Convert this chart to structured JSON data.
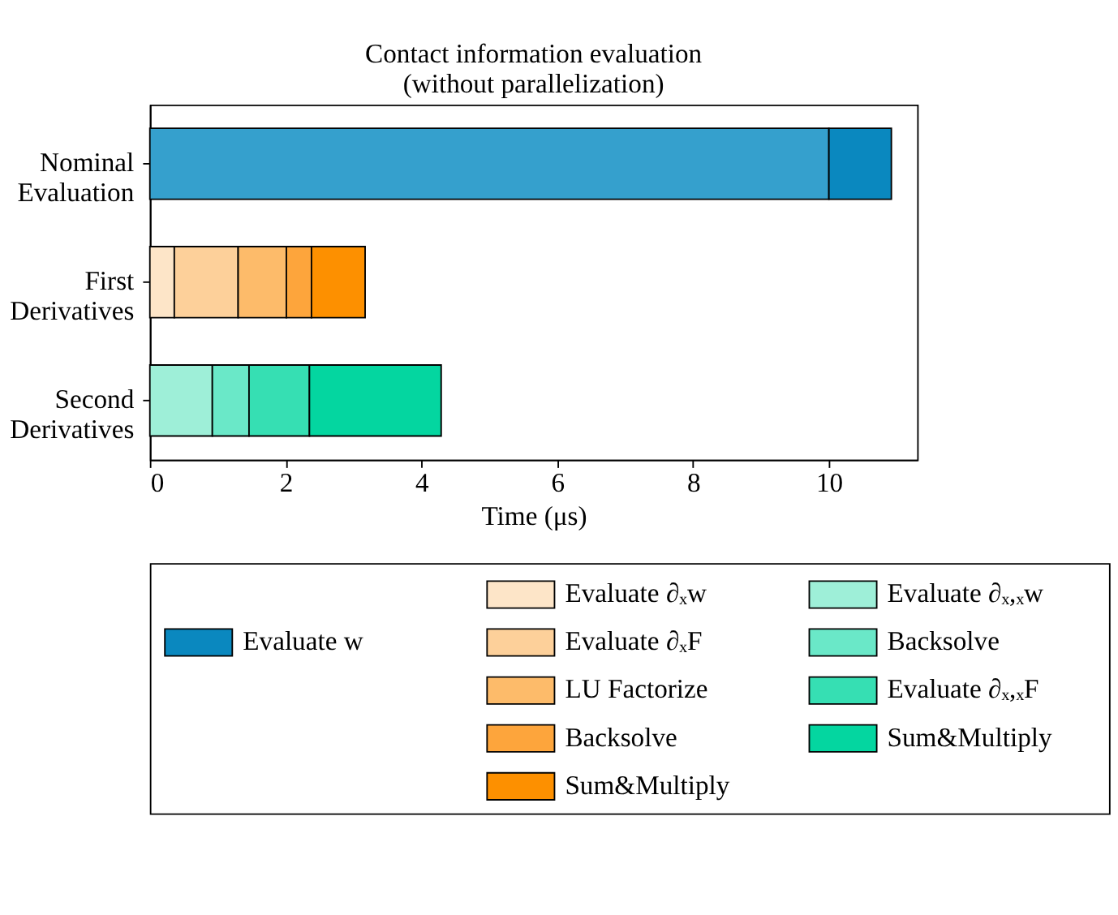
{
  "chart_data": {
    "type": "bar",
    "orientation": "horizontal",
    "stacked": true,
    "title": "Contact information evaluation\n(without parallelization)",
    "xlabel": "Time (μs)",
    "categories": [
      "Nominal\nEvaluation",
      "First\nDerivatives",
      "Second\nDerivatives"
    ],
    "xlim": [
      0,
      11.3
    ],
    "xticks": [
      0,
      2,
      4,
      6,
      8,
      10
    ],
    "grid": false,
    "legend": "bottom",
    "series": [
      {
        "color": "#35a0cd",
        "values": [
          10.0,
          null,
          null
        ]
      },
      {
        "name": "Evaluate w",
        "color": "#0a88bf",
        "values": [
          0.92,
          null,
          null
        ]
      },
      {
        "name": "Evaluate ∂ₓw",
        "color": "#fde5c8",
        "values": [
          null,
          0.36,
          null
        ]
      },
      {
        "name": "Evaluate ∂ₓF",
        "color": "#fdd09a",
        "values": [
          null,
          0.94,
          null
        ]
      },
      {
        "name": "LU Factorize",
        "color": "#fdbb6a",
        "values": [
          null,
          0.71,
          null
        ]
      },
      {
        "name": "Backsolve",
        "color": "#fda53c",
        "values": [
          null,
          0.37,
          null
        ]
      },
      {
        "name": "Sum&Multiply",
        "color": "#fd9000",
        "values": [
          null,
          0.79,
          null
        ]
      },
      {
        "name": "Evaluate ∂ₓ,ₓw",
        "color": "#9eefd8",
        "values": [
          null,
          null,
          0.92
        ]
      },
      {
        "name": "Backsolve",
        "color": "#6ae8c8",
        "values": [
          null,
          null,
          0.54
        ]
      },
      {
        "name": "Evaluate ∂ₓ,ₓF",
        "color": "#36dfb3",
        "values": [
          null,
          null,
          0.89
        ]
      },
      {
        "name": "Sum&Multiply",
        "color": "#04d6a0",
        "values": [
          null,
          null,
          1.94
        ]
      }
    ]
  }
}
